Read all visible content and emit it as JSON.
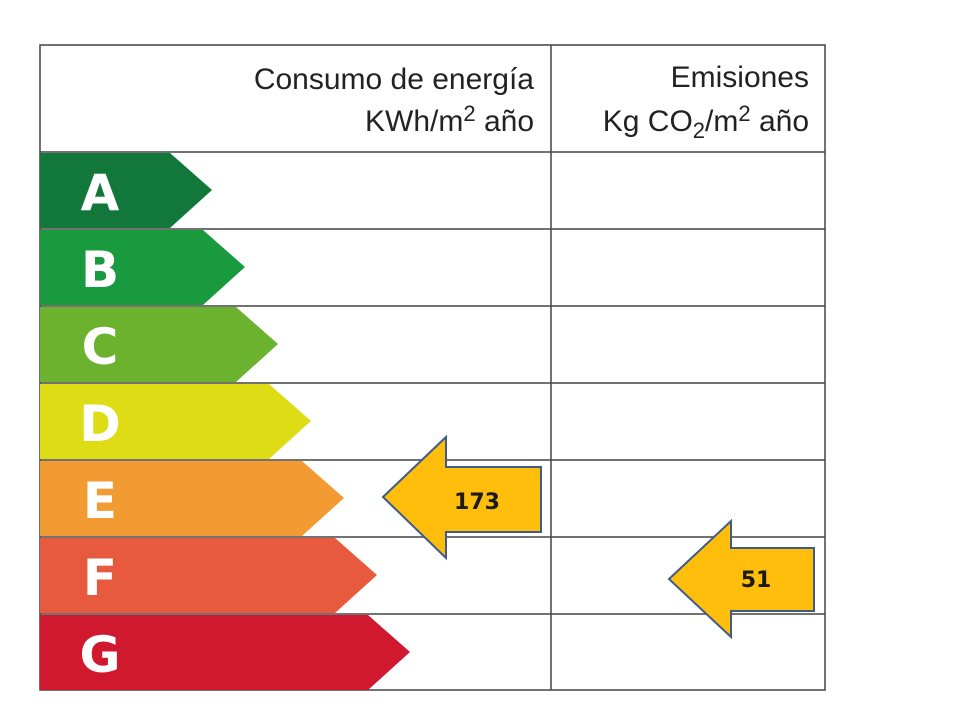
{
  "header": {
    "consumo_line1": "Consumo de energía",
    "consumo_line2_main": "KWh/m",
    "consumo_line2_sup": "2",
    "consumo_line2_end": " año",
    "emisiones_line1": "Emisiones",
    "emisiones_line2_a": "Kg CO",
    "emisiones_line2_sub": "2",
    "emisiones_line2_b": "/m",
    "emisiones_line2_sup": "2",
    "emisiones_line2_end": " año"
  },
  "ratings": [
    {
      "letter": "A",
      "color": "#12773A"
    },
    {
      "letter": "B",
      "color": "#199A3F"
    },
    {
      "letter": "C",
      "color": "#6BB22F"
    },
    {
      "letter": "D",
      "color": "#DEDC14"
    },
    {
      "letter": "E",
      "color": "#F39B33"
    },
    {
      "letter": "F",
      "color": "#E85A3D"
    },
    {
      "letter": "G",
      "color": "#D0182E"
    }
  ],
  "indicators": {
    "consumo": {
      "value": "173",
      "rating": "E"
    },
    "emisiones": {
      "value": "51",
      "rating": "F"
    },
    "arrow_fill": "#FFBE0B",
    "arrow_stroke": "#3E5C8A"
  }
}
